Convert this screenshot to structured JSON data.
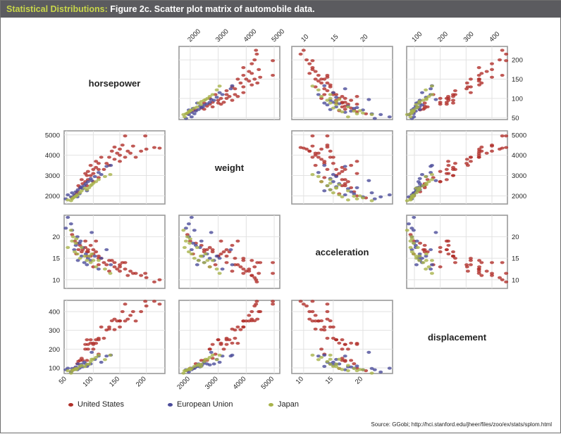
{
  "header": {
    "lead": "Statistical Distributions:",
    "title": "Figure 2c. Scatter plot matrix of automobile data."
  },
  "source": "Source: GGobi; http://hci.stanford.edu/jheer/files/zoo/ex/stats/splom.html",
  "colors": {
    "United States": "#b0302a",
    "European Union": "#4b4c9a",
    "Japan": "#a8b34a",
    "title_bar": "#5b5b5f",
    "title_lead": "#c8d64a"
  },
  "chart_data": {
    "type": "scatter",
    "variables": [
      "horsepower",
      "weight",
      "acceleration",
      "displacement"
    ],
    "axes": {
      "horsepower": {
        "range": [
          45,
          235
        ],
        "ticks": [
          50,
          100,
          150,
          200
        ]
      },
      "weight": {
        "range": [
          1600,
          5200
        ],
        "ticks": [
          2000,
          3000,
          4000,
          5000
        ]
      },
      "acceleration": {
        "range": [
          8,
          25
        ],
        "ticks": [
          10,
          15,
          20
        ]
      },
      "displacement": {
        "range": [
          70,
          460
        ],
        "ticks": [
          100,
          200,
          300,
          400
        ]
      }
    },
    "grid": true,
    "legend": {
      "position": "bottom-left",
      "items": [
        "United States",
        "European Union",
        "Japan"
      ]
    },
    "series": [
      {
        "name": "United States",
        "points": [
          [
            215,
            4380,
            9.5,
            455
          ],
          [
            225,
            4350,
            10.0,
            440
          ],
          [
            200,
            4300,
            10.5,
            430
          ],
          [
            190,
            4200,
            11.0,
            400
          ],
          [
            175,
            4450,
            11.5,
            400
          ],
          [
            170,
            4100,
            12.0,
            380
          ],
          [
            165,
            4200,
            11.0,
            360
          ],
          [
            160,
            3900,
            12.5,
            350
          ],
          [
            150,
            4000,
            12.0,
            350
          ],
          [
            150,
            4300,
            13.0,
            351
          ],
          [
            150,
            3700,
            13.5,
            318
          ],
          [
            145,
            4100,
            12.5,
            350
          ],
          [
            140,
            3800,
            13.0,
            304
          ],
          [
            140,
            4400,
            14.0,
            360
          ],
          [
            130,
            3500,
            12.0,
            307
          ],
          [
            130,
            3900,
            14.5,
            318
          ],
          [
            125,
            3600,
            13.5,
            302
          ],
          [
            120,
            3300,
            14.0,
            258
          ],
          [
            110,
            3600,
            15.0,
            258
          ],
          [
            110,
            3300,
            15.5,
            250
          ],
          [
            105,
            3400,
            16.5,
            250
          ],
          [
            100,
            3100,
            16.0,
            232
          ],
          [
            100,
            3300,
            17.0,
            225
          ],
          [
            95,
            3000,
            15.5,
            250
          ],
          [
            95,
            3500,
            18.0,
            232
          ],
          [
            90,
            2800,
            17.0,
            225
          ],
          [
            90,
            3200,
            16.5,
            200
          ],
          [
            88,
            3000,
            15.5,
            250
          ],
          [
            85,
            2700,
            17.5,
            200
          ],
          [
            85,
            3100,
            19.0,
            225
          ],
          [
            80,
            2600,
            17.0,
            140
          ],
          [
            78,
            2800,
            16.5,
            151
          ],
          [
            75,
            2400,
            18.0,
            140
          ],
          [
            72,
            2500,
            17.0,
            135
          ],
          [
            70,
            2200,
            18.5,
            122
          ],
          [
            68,
            2100,
            16.0,
            97
          ],
          [
            65,
            2000,
            19.0,
            98
          ],
          [
            60,
            1900,
            20.5,
            85
          ],
          [
            88,
            2500,
            16.5,
            140
          ],
          [
            110,
            2900,
            13.5,
            173
          ],
          [
            105,
            3700,
            19.0,
            231
          ],
          [
            115,
            3900,
            15.0,
            318
          ],
          [
            155,
            4500,
            14.0,
            400
          ],
          [
            180,
            3900,
            11.5,
            350
          ],
          [
            198,
            4950,
            11.5,
            455
          ],
          [
            160,
            4950,
            14.0,
            440
          ],
          [
            135,
            4200,
            14.5,
            351
          ],
          [
            100,
            2700,
            13.0,
            200
          ]
        ]
      },
      {
        "name": "European Union",
        "points": [
          [
            48,
            1850,
            22.0,
            90
          ],
          [
            52,
            2050,
            24.5,
            98
          ],
          [
            60,
            2150,
            21.5,
            97
          ],
          [
            67,
            2200,
            18.0,
            105
          ],
          [
            71,
            2300,
            14.5,
            121
          ],
          [
            76,
            2400,
            19.0,
            110
          ],
          [
            78,
            2450,
            15.5,
            120
          ],
          [
            83,
            2500,
            14.0,
            130
          ],
          [
            86,
            2600,
            16.0,
            121
          ],
          [
            90,
            2700,
            15.0,
            116
          ],
          [
            95,
            2850,
            14.5,
            121
          ],
          [
            103,
            2950,
            15.5,
            145
          ],
          [
            110,
            3150,
            12.5,
            163
          ],
          [
            115,
            3050,
            15.0,
            130
          ],
          [
            125,
            3450,
            17.0,
            163
          ],
          [
            133,
            3500,
            13.5,
            168
          ],
          [
            58,
            1950,
            23.0,
            78
          ],
          [
            70,
            1950,
            20.0,
            90
          ],
          [
            88,
            2250,
            13.5,
            108
          ],
          [
            74,
            2100,
            18.5,
            98
          ],
          [
            64,
            2050,
            17.0,
            90
          ],
          [
            97,
            2750,
            21.0,
            183
          ],
          [
            80,
            2350,
            17.5,
            105
          ]
        ]
      },
      {
        "name": "Japan",
        "points": [
          [
            52,
            1800,
            17.5,
            85
          ],
          [
            60,
            1850,
            19.0,
            85
          ],
          [
            65,
            1950,
            16.5,
            91
          ],
          [
            67,
            1980,
            18.5,
            97
          ],
          [
            70,
            2050,
            16.0,
            97
          ],
          [
            75,
            2150,
            15.0,
            108
          ],
          [
            78,
            2250,
            17.5,
            113
          ],
          [
            88,
            2300,
            14.5,
            119
          ],
          [
            92,
            2400,
            15.5,
            120
          ],
          [
            95,
            2500,
            14.0,
            134
          ],
          [
            97,
            2550,
            16.0,
            146
          ],
          [
            105,
            2700,
            13.0,
            156
          ],
          [
            110,
            2800,
            14.5,
            168
          ],
          [
            122,
            2950,
            12.5,
            144
          ],
          [
            132,
            3050,
            11.5,
            168
          ],
          [
            62,
            1900,
            20.0,
            90
          ],
          [
            58,
            1760,
            21.5,
            72
          ],
          [
            68,
            2000,
            19.5,
            91
          ],
          [
            84,
            2380,
            15.5,
            107
          ],
          [
            100,
            2620,
            14.5,
            146
          ]
        ]
      }
    ]
  }
}
